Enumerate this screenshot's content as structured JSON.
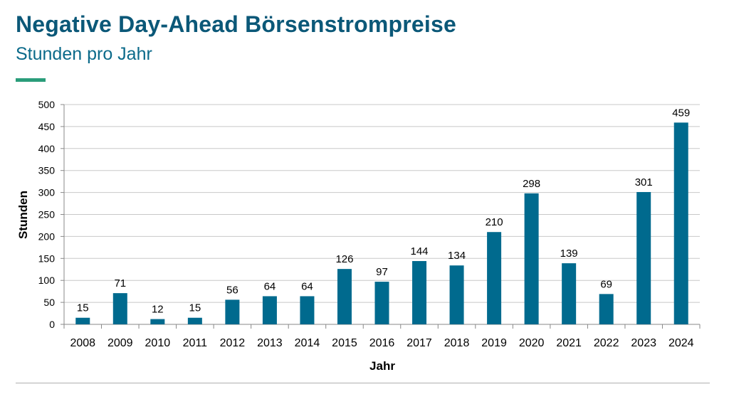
{
  "header": {
    "title": "Negative Day-Ahead Börsenstrompreise",
    "subtitle": "Stunden pro Jahr"
  },
  "colors": {
    "title": "#0b5878",
    "accent": "#2a9d7a",
    "bar": "#006a8e",
    "grid": "#c8c8c8"
  },
  "chart_data": {
    "type": "bar",
    "categories": [
      "2008",
      "2009",
      "2010",
      "2011",
      "2012",
      "2013",
      "2014",
      "2015",
      "2016",
      "2017",
      "2018",
      "2019",
      "2020",
      "2021",
      "2022",
      "2023",
      "2024"
    ],
    "values": [
      15,
      71,
      12,
      15,
      56,
      64,
      64,
      126,
      97,
      144,
      134,
      210,
      298,
      139,
      69,
      301,
      459
    ],
    "xlabel": "Jahr",
    "ylabel": "Stunden",
    "ylim": [
      0,
      500
    ],
    "yticks": [
      0,
      50,
      100,
      150,
      200,
      250,
      300,
      350,
      400,
      450,
      500
    ],
    "grid": true,
    "legend": "none"
  }
}
